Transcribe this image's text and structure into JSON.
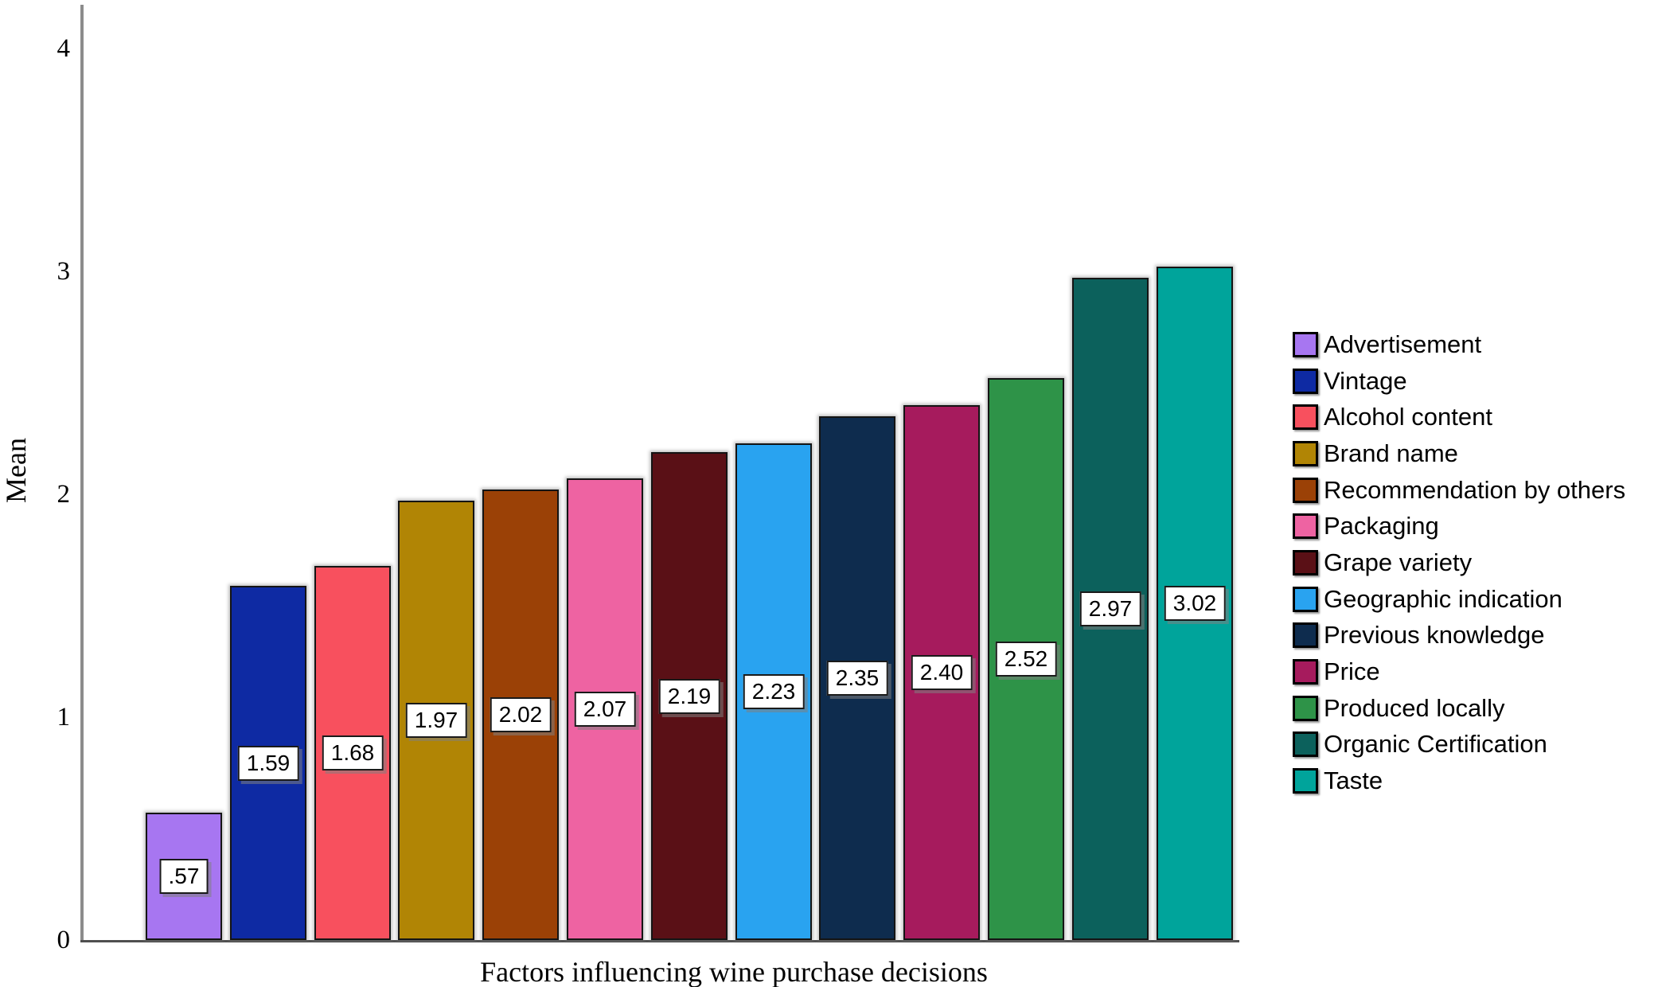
{
  "chart_data": {
    "type": "bar",
    "title": "",
    "xlabel": "Factors influencing wine purchase decisions",
    "ylabel": "Mean",
    "ylim": [
      0,
      4
    ],
    "yticks": [
      0,
      1,
      2,
      3,
      4
    ],
    "ytick_labels": [
      "0",
      "1",
      "2",
      "3",
      "4"
    ],
    "grid": false,
    "legend_position": "right",
    "categories": [
      "Advertisement",
      "Vintage",
      "Alcohol content",
      "Brand name",
      "Recommendation by others",
      "Packaging",
      "Grape variety",
      "Geographic indication",
      "Previous knowledge",
      "Price",
      "Produced locally",
      "Organic Certification",
      "Taste"
    ],
    "values": [
      0.57,
      1.59,
      1.68,
      1.97,
      2.02,
      2.07,
      2.19,
      2.23,
      2.35,
      2.4,
      2.52,
      2.97,
      3.02
    ],
    "value_labels": [
      ".57",
      "1.59",
      "1.68",
      "1.97",
      "2.02",
      "2.07",
      "2.19",
      "2.23",
      "2.35",
      "2.40",
      "2.52",
      "2.97",
      "3.02"
    ],
    "colors": [
      "#a776f1",
      "#0e2aa3",
      "#f8505e",
      "#b18505",
      "#9b4106",
      "#ee63a2",
      "#5a1016",
      "#29a3f0",
      "#0e2c4e",
      "#a61b5d",
      "#2e9348",
      "#0c615c",
      "#00a49b"
    ]
  }
}
